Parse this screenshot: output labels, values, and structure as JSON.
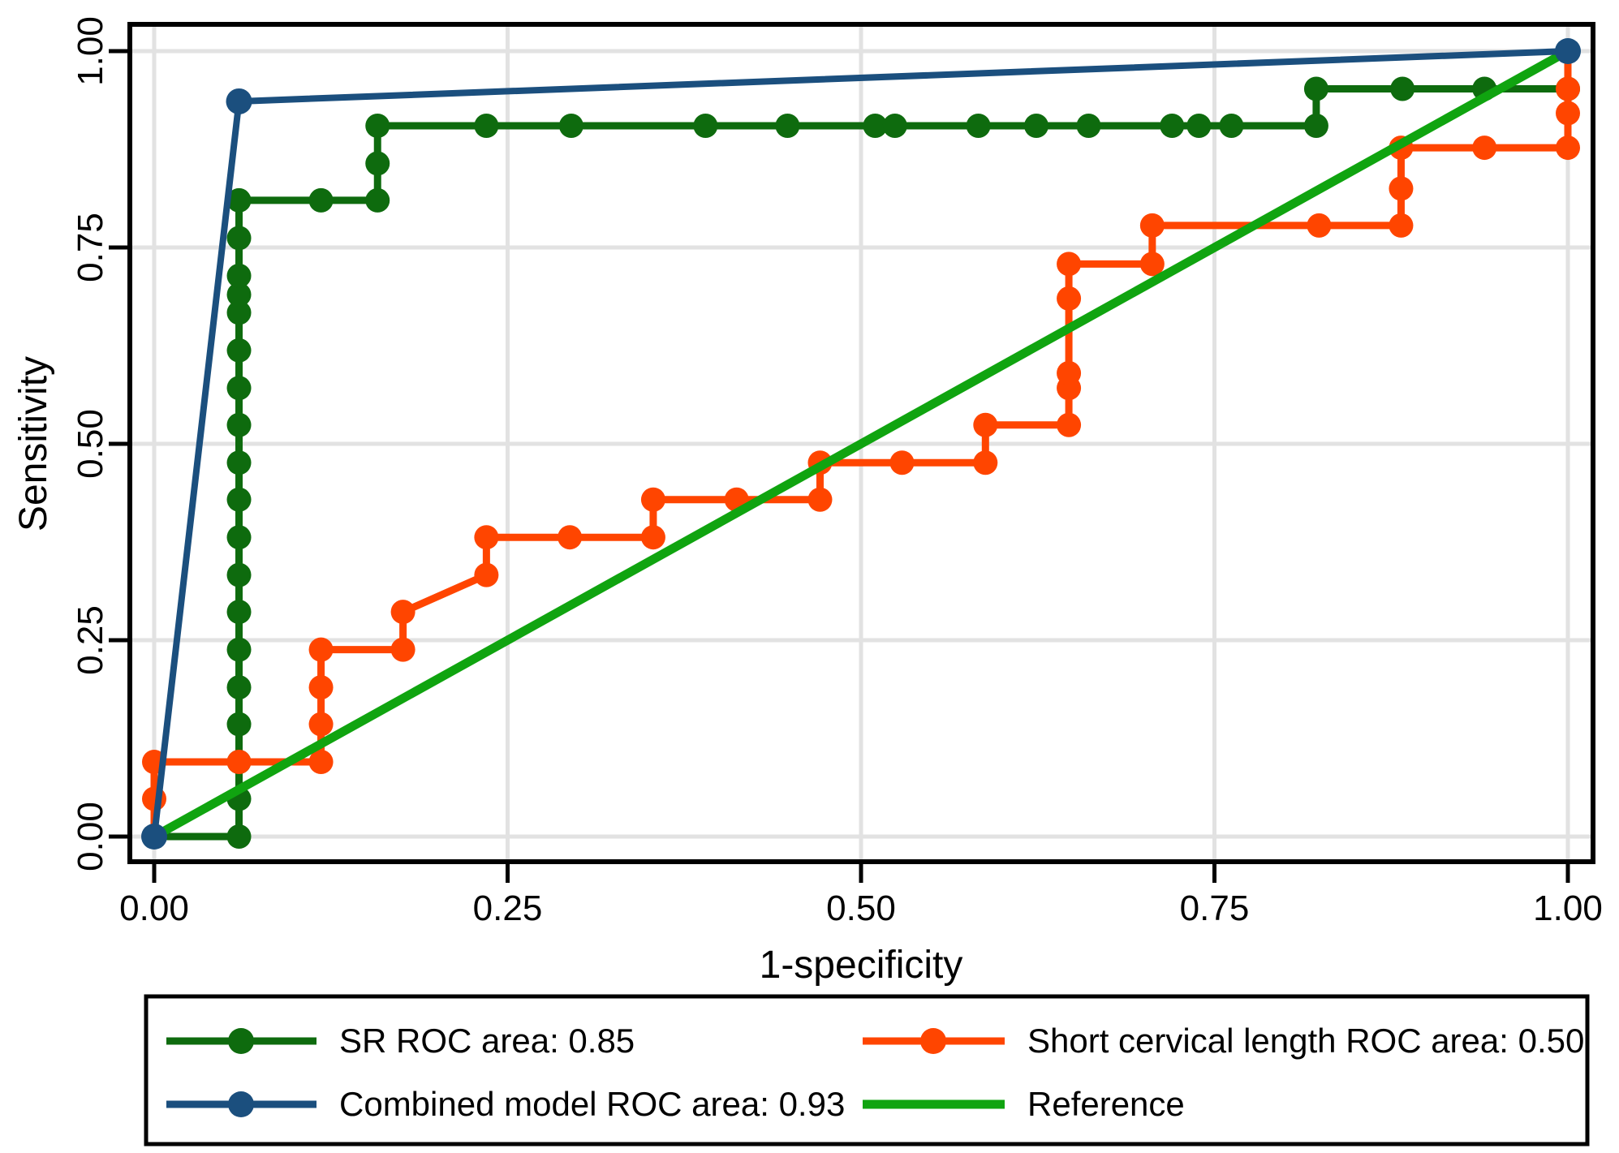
{
  "figure": {
    "background": "#FFFFFF",
    "axis_color": "#000000",
    "grid_color": "#E2E2E2"
  },
  "chart_data": {
    "type": "line",
    "title": "",
    "xlabel": "1-specificity",
    "ylabel": "Sensitivity",
    "xlim": [
      0,
      1
    ],
    "ylim": [
      0,
      1
    ],
    "grid": true,
    "legend_position": "bottom",
    "x_ticks": [
      {
        "value": 0,
        "label": "0.00"
      },
      {
        "value": 0.25,
        "label": "0.25"
      },
      {
        "value": 0.5,
        "label": "0.50"
      },
      {
        "value": 0.75,
        "label": "0.75"
      },
      {
        "value": 1,
        "label": "1.00"
      }
    ],
    "y_ticks": [
      {
        "value": 0,
        "label": "0.00"
      },
      {
        "value": 0.25,
        "label": "0.25"
      },
      {
        "value": 0.5,
        "label": "0.50"
      },
      {
        "value": 0.75,
        "label": "0.75"
      },
      {
        "value": 1,
        "label": "1.00"
      }
    ],
    "series": [
      {
        "key": "sr",
        "name": "SR ROC area: 0.85",
        "auc": 0.85,
        "color": "#0E6B0E",
        "marker": true,
        "marker_radius": 15,
        "line_width": 9,
        "points": [
          [
            0,
            0
          ],
          [
            0.06,
            0
          ],
          [
            0.06,
            0.048
          ],
          [
            0.06,
            0.095
          ],
          [
            0.06,
            0.143
          ],
          [
            0.06,
            0.19
          ],
          [
            0.06,
            0.238
          ],
          [
            0.06,
            0.286
          ],
          [
            0.06,
            0.333
          ],
          [
            0.06,
            0.381
          ],
          [
            0.06,
            0.429
          ],
          [
            0.06,
            0.476
          ],
          [
            0.06,
            0.524
          ],
          [
            0.06,
            0.571
          ],
          [
            0.06,
            0.619
          ],
          [
            0.06,
            0.667
          ],
          [
            0.06,
            0.69
          ],
          [
            0.06,
            0.714
          ],
          [
            0.06,
            0.762
          ],
          [
            0.06,
            0.81
          ],
          [
            0.118,
            0.81
          ],
          [
            0.158,
            0.81
          ],
          [
            0.158,
            0.857
          ],
          [
            0.158,
            0.905
          ],
          [
            0.235,
            0.905
          ],
          [
            0.295,
            0.905
          ],
          [
            0.39,
            0.905
          ],
          [
            0.448,
            0.905
          ],
          [
            0.51,
            0.905
          ],
          [
            0.524,
            0.905
          ],
          [
            0.583,
            0.905
          ],
          [
            0.624,
            0.905
          ],
          [
            0.661,
            0.905
          ],
          [
            0.72,
            0.905
          ],
          [
            0.739,
            0.905
          ],
          [
            0.762,
            0.905
          ],
          [
            0.822,
            0.905
          ],
          [
            0.822,
            0.952
          ],
          [
            0.883,
            0.952
          ],
          [
            0.941,
            0.952
          ],
          [
            1,
            0.952
          ],
          [
            1,
            1
          ]
        ]
      },
      {
        "key": "short_cl",
        "name": "Short cervical length ROC area: 0.50",
        "auc": 0.5,
        "color": "#FF4500",
        "marker": true,
        "marker_radius": 15,
        "line_width": 9,
        "points": [
          [
            0,
            0
          ],
          [
            0,
            0.048
          ],
          [
            0,
            0.095
          ],
          [
            0.06,
            0.095
          ],
          [
            0.118,
            0.095
          ],
          [
            0.118,
            0.143
          ],
          [
            0.118,
            0.19
          ],
          [
            0.118,
            0.238
          ],
          [
            0.176,
            0.238
          ],
          [
            0.176,
            0.286
          ],
          [
            0.235,
            0.333
          ],
          [
            0.235,
            0.381
          ],
          [
            0.294,
            0.381
          ],
          [
            0.353,
            0.381
          ],
          [
            0.353,
            0.429
          ],
          [
            0.412,
            0.429
          ],
          [
            0.471,
            0.429
          ],
          [
            0.471,
            0.476
          ],
          [
            0.529,
            0.476
          ],
          [
            0.588,
            0.476
          ],
          [
            0.588,
            0.524
          ],
          [
            0.647,
            0.524
          ],
          [
            0.647,
            0.571
          ],
          [
            0.647,
            0.59
          ],
          [
            0.647,
            0.685
          ],
          [
            0.647,
            0.729
          ],
          [
            0.706,
            0.729
          ],
          [
            0.706,
            0.778
          ],
          [
            0.824,
            0.778
          ],
          [
            0.882,
            0.778
          ],
          [
            0.882,
            0.825
          ],
          [
            0.882,
            0.877
          ],
          [
            0.941,
            0.877
          ],
          [
            1,
            0.877
          ],
          [
            1,
            0.921
          ],
          [
            1,
            0.952
          ],
          [
            1,
            1
          ]
        ]
      },
      {
        "key": "reference",
        "name": "Reference",
        "color": "#10A410",
        "marker": false,
        "marker_radius": 0,
        "line_width": 11,
        "points": [
          [
            0,
            0
          ],
          [
            1,
            1
          ]
        ]
      },
      {
        "key": "combined",
        "name": "Combined model ROC area: 0.93",
        "auc": 0.93,
        "color": "#1B4F7E",
        "marker": true,
        "marker_radius": 16,
        "line_width": 8,
        "points": [
          [
            0,
            0
          ],
          [
            0.06,
            0.936
          ],
          [
            1,
            1
          ]
        ]
      }
    ]
  },
  "axes": {
    "xlabel": "1-specificity",
    "ylabel": "Sensitivity"
  },
  "legend": {
    "items": [
      {
        "label": "SR ROC area: 0.85",
        "series": "sr"
      },
      {
        "label": "Short cervical length ROC area: 0.50",
        "series": "short_cl"
      },
      {
        "label": "Combined model ROC area: 0.93",
        "series": "combined"
      },
      {
        "label": "Reference",
        "series": "reference"
      }
    ]
  }
}
